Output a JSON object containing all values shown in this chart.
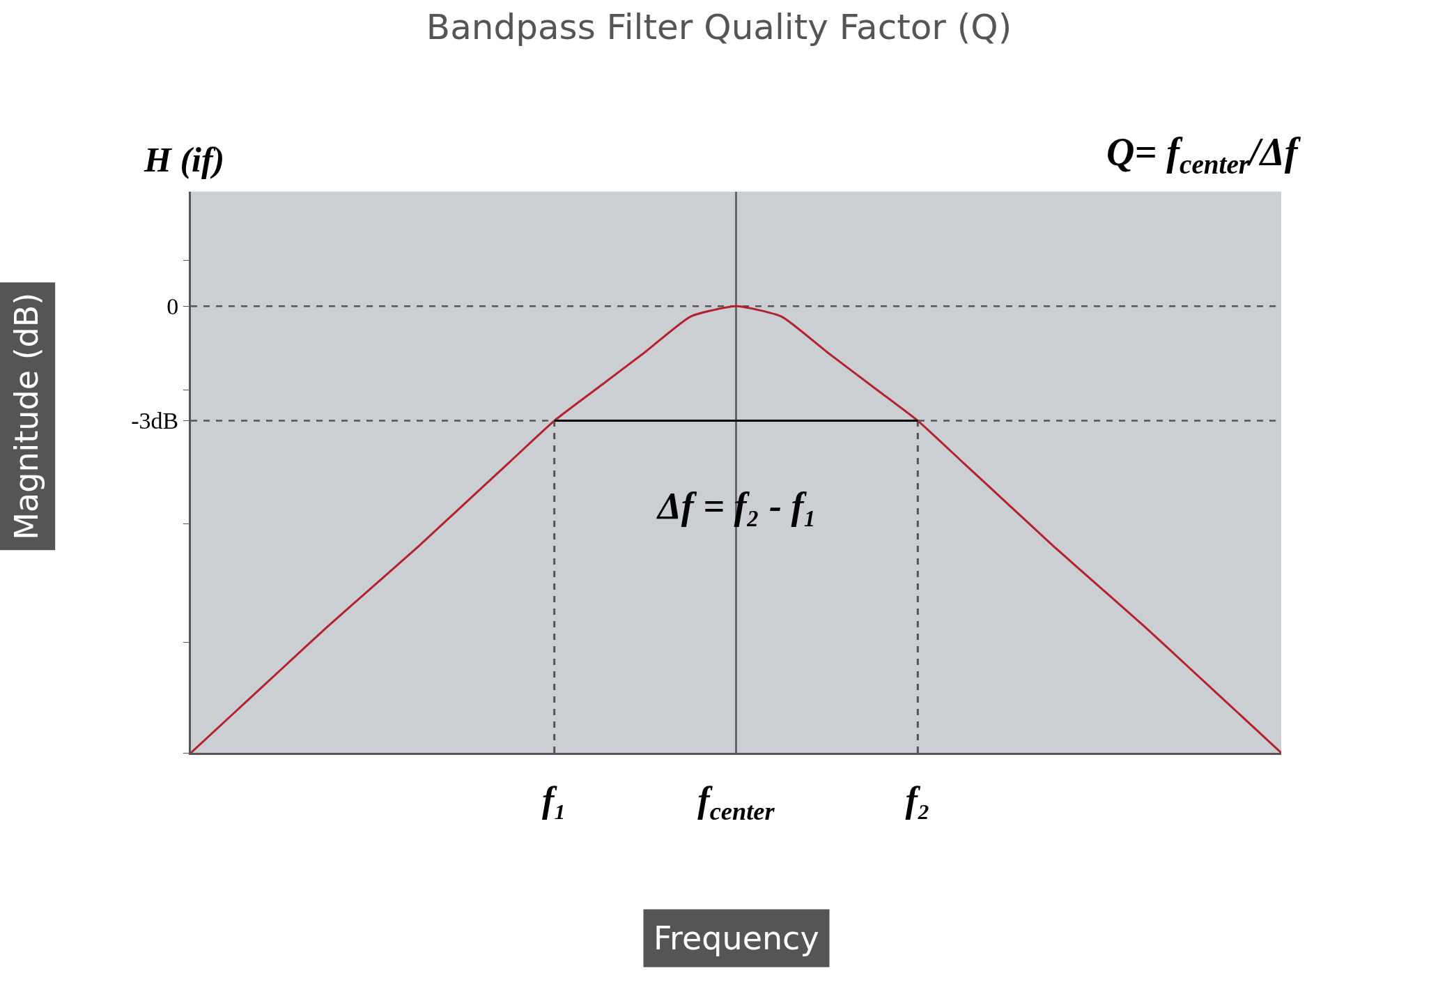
{
  "chart_data": {
    "type": "line",
    "title": "Bandpass Filter Quality Factor (Q)",
    "xlabel": "Frequency",
    "ylabel": "Magnitude (dB)",
    "categories": [
      null,
      null,
      null,
      null,
      null,
      null,
      null,
      null,
      "f₁",
      null,
      null,
      null,
      "f$_{center}$",
      null,
      null,
      null,
      "f₂",
      null,
      null,
      null,
      null,
      null,
      null,
      null,
      null
    ],
    "series": [
      {
        "color": "#b5202e",
        "values": [
          -11.7,
          -10.6,
          -9.5,
          -8.4,
          -7.35,
          -6.3,
          -5.2,
          -4.1,
          -3,
          -2.1,
          -1.2,
          -0.27,
          0,
          -0.27,
          -1.2,
          -2.1,
          -3,
          -4.1,
          -5.2,
          -6.3,
          -7.35,
          -8.4,
          -9.5,
          -10.6,
          -11.7
        ]
      },
      {
        "color": "#555555",
        "line_style": "dashed",
        "x": [
          "f₁",
          "f₁"
        ],
        "values": [
          -11.7,
          -3
        ]
      },
      {
        "color": "#555555",
        "line_style": "dashed",
        "x": [
          "f₂",
          "f₂"
        ],
        "values": [
          -11.7,
          -3
        ]
      },
      {
        "color": "#000000",
        "x": [
          "f₁",
          "f₂"
        ],
        "values": [
          -3,
          -3
        ]
      }
    ],
    "ylim": [
      -11.7,
      3
    ],
    "yticks": [
      {
        "value": 1.2,
        "label": null
      },
      0,
      {
        "value": -2.2,
        "label": null
      },
      {
        "value": -3,
        "label": "-3dB"
      },
      {
        "value": -5.7,
        "label": null
      },
      {
        "value": -8.8,
        "label": null
      },
      {
        "value": -11.7,
        "label": null
      }
    ],
    "ref_lines": [
      {
        "axis": "y",
        "value": 0,
        "color": "#555555",
        "line_style": "dashed"
      },
      {
        "axis": "y",
        "value": -3,
        "color": "#555555",
        "line_style": "dashed"
      },
      {
        "axis": "x",
        "value": "f$_{center}$",
        "color": "#555555",
        "line_style": "solid"
      }
    ],
    "annotations": [
      "H (if)",
      "Q= f$_{center}$/Δf",
      "Δf = f₂ - f₁"
    ],
    "grid": false,
    "marker": "none",
    "line_style": "solid"
  }
}
